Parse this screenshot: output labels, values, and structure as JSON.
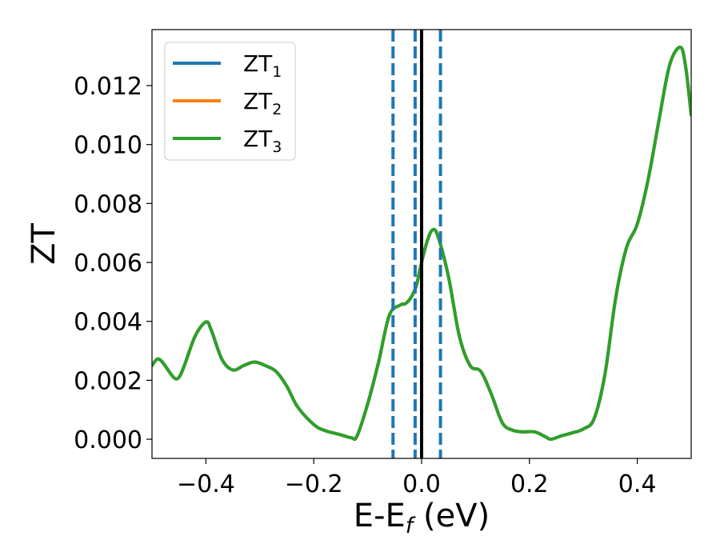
{
  "chart_data": {
    "type": "line",
    "title": "",
    "xlabel": {
      "main": "E-E",
      "sub": "f",
      "rest": " (eV)"
    },
    "ylabel": "ZT",
    "xlim": [
      -0.5,
      0.5
    ],
    "ylim": [
      -0.00065,
      0.0139
    ],
    "xticks": [
      -0.4,
      -0.2,
      0.0,
      0.2,
      0.4
    ],
    "xtick_labels": [
      "−0.4",
      "−0.2",
      "0.0",
      "0.2",
      "0.4"
    ],
    "yticks": [
      0.0,
      0.002,
      0.004,
      0.006,
      0.008,
      0.01,
      0.012
    ],
    "ytick_labels": [
      "0.000",
      "0.002",
      "0.004",
      "0.006",
      "0.008",
      "0.010",
      "0.012"
    ],
    "legend_position": "top-left",
    "colors": {
      "blue": "#1f77b4",
      "orange": "#ff7f0e",
      "green": "#2ca02c",
      "black": "#000000"
    },
    "vlines": [
      {
        "x": -0.053,
        "style": "dashed",
        "color": "#1f77b4"
      },
      {
        "x": -0.012,
        "style": "dashed",
        "color": "#1f77b4"
      },
      {
        "x": 0.0,
        "style": "solid",
        "color": "#000000"
      },
      {
        "x": 0.035,
        "style": "dashed",
        "color": "#1f77b4"
      }
    ],
    "x": [
      -0.5,
      -0.49,
      -0.48,
      -0.46,
      -0.45,
      -0.44,
      -0.42,
      -0.4,
      -0.39,
      -0.37,
      -0.35,
      -0.33,
      -0.31,
      -0.29,
      -0.27,
      -0.25,
      -0.23,
      -0.2,
      -0.18,
      -0.15,
      -0.13,
      -0.12,
      -0.1,
      -0.08,
      -0.06,
      -0.04,
      -0.03,
      -0.02,
      -0.01,
      0.0,
      0.01,
      0.02,
      0.03,
      0.05,
      0.07,
      0.09,
      0.11,
      0.13,
      0.15,
      0.17,
      0.19,
      0.21,
      0.23,
      0.24,
      0.26,
      0.28,
      0.3,
      0.32,
      0.34,
      0.36,
      0.38,
      0.4,
      0.42,
      0.44,
      0.46,
      0.48,
      0.49,
      0.5
    ],
    "series": [
      {
        "name": {
          "main": "ZT",
          "sub": "1"
        },
        "color": "#1f77b4",
        "values": [
          0.0025,
          0.00272,
          0.0026,
          0.0021,
          0.0021,
          0.0025,
          0.0035,
          0.00398,
          0.0037,
          0.0027,
          0.00235,
          0.0025,
          0.00262,
          0.0025,
          0.0023,
          0.0018,
          0.0011,
          0.0005,
          0.0003,
          0.00015,
          5e-05,
          0.0001,
          0.0012,
          0.0026,
          0.0042,
          0.00455,
          0.0046,
          0.0048,
          0.0052,
          0.006,
          0.0067,
          0.0071,
          0.0069,
          0.0055,
          0.0035,
          0.0025,
          0.0023,
          0.0015,
          0.00055,
          0.0003,
          0.00025,
          0.00025,
          8e-05,
          0.0,
          0.00012,
          0.00022,
          0.00035,
          0.0007,
          0.0022,
          0.0048,
          0.0065,
          0.0073,
          0.0088,
          0.0108,
          0.0127,
          0.0133,
          0.0126,
          0.011
        ]
      },
      {
        "name": {
          "main": "ZT",
          "sub": "2"
        },
        "color": "#ff7f0e",
        "values": [
          0.0025,
          0.00272,
          0.0026,
          0.0021,
          0.0021,
          0.0025,
          0.0035,
          0.00398,
          0.0037,
          0.0027,
          0.00235,
          0.0025,
          0.00262,
          0.0025,
          0.0023,
          0.0018,
          0.0011,
          0.0005,
          0.0003,
          0.00015,
          5e-05,
          0.0001,
          0.0012,
          0.0026,
          0.0042,
          0.00455,
          0.0046,
          0.0048,
          0.0052,
          0.006,
          0.0067,
          0.0071,
          0.0069,
          0.0055,
          0.0035,
          0.0025,
          0.0023,
          0.0015,
          0.00055,
          0.0003,
          0.00025,
          0.00025,
          8e-05,
          0.0,
          0.00012,
          0.00022,
          0.00035,
          0.0007,
          0.0022,
          0.0048,
          0.0065,
          0.0073,
          0.0088,
          0.0108,
          0.0127,
          0.0133,
          0.0126,
          0.011
        ]
      },
      {
        "name": {
          "main": "ZT",
          "sub": "3"
        },
        "color": "#2ca02c",
        "values": [
          0.0025,
          0.00272,
          0.0026,
          0.0021,
          0.0021,
          0.0025,
          0.0035,
          0.00398,
          0.0037,
          0.0027,
          0.00235,
          0.0025,
          0.00262,
          0.0025,
          0.0023,
          0.0018,
          0.0011,
          0.0005,
          0.0003,
          0.00015,
          5e-05,
          0.0001,
          0.0012,
          0.0026,
          0.0042,
          0.00455,
          0.0046,
          0.0048,
          0.0052,
          0.006,
          0.0067,
          0.0071,
          0.0069,
          0.0055,
          0.0035,
          0.0025,
          0.0023,
          0.0015,
          0.00055,
          0.0003,
          0.00025,
          0.00025,
          8e-05,
          0.0,
          0.00012,
          0.00022,
          0.00035,
          0.0007,
          0.0022,
          0.0048,
          0.0065,
          0.0073,
          0.0088,
          0.0108,
          0.0127,
          0.0133,
          0.0126,
          0.011
        ]
      }
    ]
  }
}
